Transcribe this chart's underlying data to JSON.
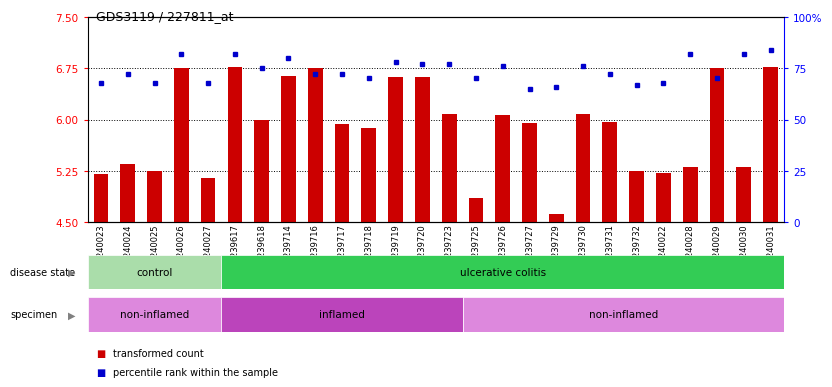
{
  "title": "GDS3119 / 227811_at",
  "categories": [
    "GSM240023",
    "GSM240024",
    "GSM240025",
    "GSM240026",
    "GSM240027",
    "GSM239617",
    "GSM239618",
    "GSM239714",
    "GSM239716",
    "GSM239717",
    "GSM239718",
    "GSM239719",
    "GSM239720",
    "GSM239723",
    "GSM239725",
    "GSM239726",
    "GSM239727",
    "GSM239729",
    "GSM239730",
    "GSM239731",
    "GSM239732",
    "GSM240022",
    "GSM240028",
    "GSM240029",
    "GSM240030",
    "GSM240031"
  ],
  "bar_values": [
    5.2,
    5.35,
    5.25,
    6.75,
    5.15,
    6.76,
    6.0,
    6.64,
    6.75,
    5.93,
    5.88,
    6.62,
    6.62,
    6.08,
    4.85,
    6.06,
    5.95,
    4.62,
    6.08,
    5.97,
    5.25,
    5.22,
    5.3,
    6.75,
    5.3,
    6.76
  ],
  "dot_values": [
    68,
    72,
    68,
    82,
    68,
    82,
    75,
    80,
    72,
    72,
    70,
    78,
    77,
    77,
    70,
    76,
    65,
    66,
    76,
    72,
    67,
    68,
    82,
    70,
    82,
    84
  ],
  "ylim_left": [
    4.5,
    7.5
  ],
  "ylim_right": [
    0,
    100
  ],
  "yticks_left": [
    4.5,
    5.25,
    6.0,
    6.75,
    7.5
  ],
  "yticks_right": [
    0,
    25,
    50,
    75,
    100
  ],
  "bar_color": "#cc0000",
  "dot_color": "#0000cc",
  "fig_bg_color": "#ffffff",
  "plot_bg_color": "#ffffff",
  "xtick_bg_color": "#d8d8d8",
  "disease_state_groups": [
    {
      "label": "control",
      "start": 0,
      "end": 5,
      "color": "#aaddaa"
    },
    {
      "label": "ulcerative colitis",
      "start": 5,
      "end": 26,
      "color": "#33cc55"
    }
  ],
  "specimen_groups": [
    {
      "label": "non-inflamed",
      "start": 0,
      "end": 5,
      "color": "#dd88dd"
    },
    {
      "label": "inflamed",
      "start": 5,
      "end": 14,
      "color": "#bb44bb"
    },
    {
      "label": "non-inflamed",
      "start": 14,
      "end": 26,
      "color": "#dd88dd"
    }
  ],
  "grid_color": "#000000"
}
